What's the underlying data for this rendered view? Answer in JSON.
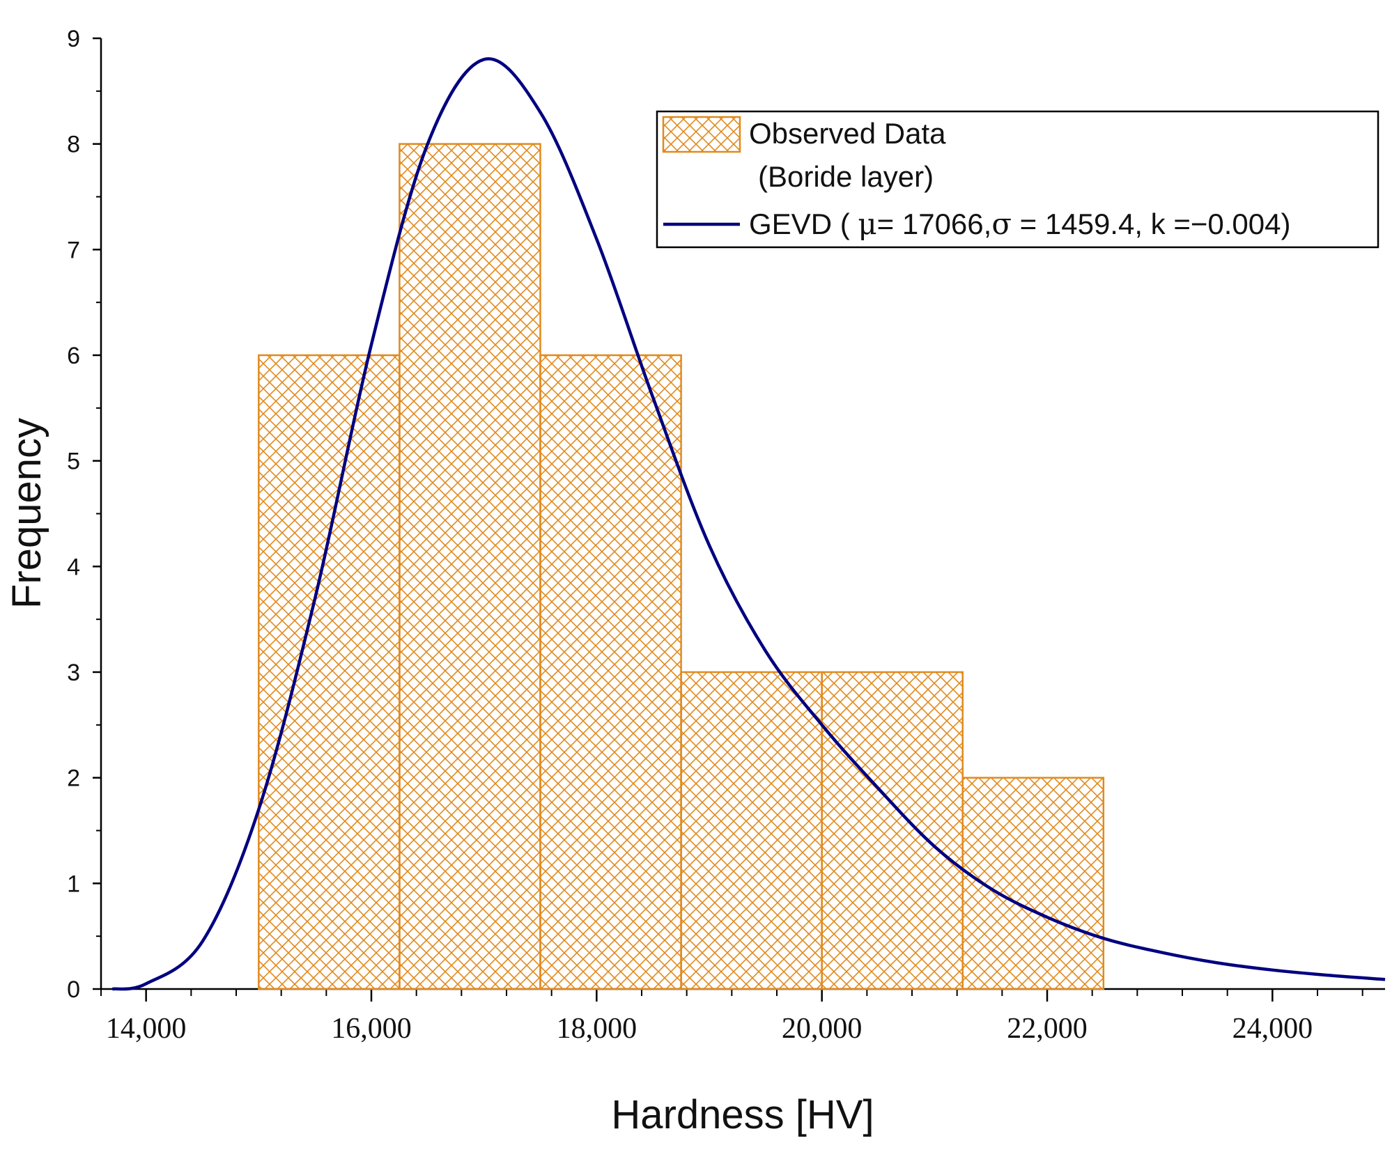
{
  "chart_data": {
    "type": "bar",
    "title": "",
    "xlabel": "Hardness [HV]",
    "ylabel": "Frequency",
    "xlim": [
      13600,
      25000
    ],
    "ylim": [
      0,
      9
    ],
    "x_ticks": [
      14000,
      16000,
      18000,
      20000,
      22000,
      24000
    ],
    "x_tick_labels": [
      "14,000",
      "16,000",
      "18,000",
      "20,000",
      "22,000",
      "24,000"
    ],
    "y_ticks": [
      0,
      1,
      2,
      3,
      4,
      5,
      6,
      7,
      8,
      9
    ],
    "y_tick_labels": [
      "0",
      "1",
      "2",
      "3",
      "4",
      "5",
      "6",
      "7",
      "8",
      "9"
    ],
    "bins": [
      {
        "start": 15000,
        "end": 16250,
        "count": 6
      },
      {
        "start": 16250,
        "end": 17500,
        "count": 8
      },
      {
        "start": 17500,
        "end": 18750,
        "count": 6
      },
      {
        "start": 18750,
        "end": 20000,
        "count": 3
      },
      {
        "start": 20000,
        "end": 21250,
        "count": 3
      },
      {
        "start": 21250,
        "end": 22500,
        "count": 2
      }
    ],
    "series": [
      {
        "name": "Observed Data",
        "kind": "histogram",
        "color": "#E08A1E",
        "pattern": "crosshatch"
      },
      {
        "name": "GEVD",
        "kind": "line",
        "color": "#000080",
        "params": {
          "mu": 17066,
          "sigma": 1459.4,
          "k": -0.004
        },
        "x": [
          13700,
          14000,
          14500,
          15000,
          15500,
          16000,
          16500,
          17000,
          17500,
          18000,
          18500,
          19000,
          19500,
          20000,
          20500,
          21000,
          21500,
          22000,
          22500,
          23000,
          23500,
          24000,
          24500,
          25000
        ],
        "values": [
          0.0,
          0.05,
          0.45,
          1.7,
          3.7,
          6.1,
          8.0,
          8.8,
          8.3,
          7.1,
          5.6,
          4.2,
          3.2,
          2.5,
          1.9,
          1.35,
          0.95,
          0.68,
          0.48,
          0.35,
          0.25,
          0.18,
          0.13,
          0.09
        ]
      }
    ],
    "legend": {
      "position": "top-right",
      "entries": [
        {
          "line1": "Observed Data",
          "line2": "(Boride layer)"
        },
        {
          "prefix": "GEVD ( ",
          "mu_symbol": "μ",
          "mu_text": "= 17066,",
          "sigma_symbol": "σ",
          "sigma_text": " = 1459.4, k =−0.004)"
        }
      ]
    }
  }
}
